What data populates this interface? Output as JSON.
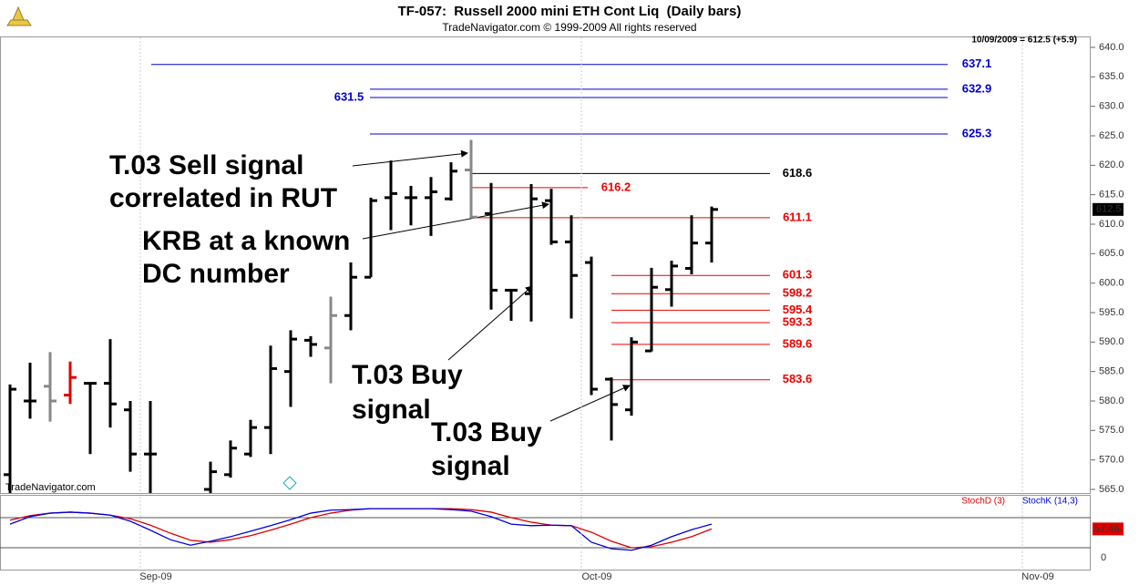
{
  "chart_data": [
    {
      "type": "ohlc",
      "title": "TF-057:  Russell 2000 mini ETH Cont Liq  (Daily bars)",
      "subtitle": "TradeNavigator.com © 1999-2009 All rights reserved",
      "info": "10/09/2009 = 612.5 (+5.9)",
      "watermark": "TradeNavigator.com",
      "categories": [
        null,
        null,
        null,
        null,
        null,
        null,
        null,
        "Sep-09",
        null,
        null,
        null,
        null,
        null,
        null,
        null,
        null,
        null,
        null,
        null,
        null,
        null,
        null,
        null,
        null,
        null,
        null,
        null,
        null,
        null,
        "Oct-09",
        null,
        null,
        null,
        null,
        null,
        null,
        null,
        null,
        null,
        null,
        null,
        null,
        null,
        null,
        null,
        null,
        null,
        null,
        null,
        null,
        null,
        "Nov-09",
        null,
        null
      ],
      "open": [
        567.5,
        580,
        582.5,
        581,
        583,
        583,
        578.5,
        571,
        null,
        null,
        565,
        567.5,
        571,
        575.5,
        585,
        590.3,
        589,
        594.5,
        601,
        614.5,
        614.5,
        614.5,
        614.3,
        619.2,
        611.8,
        598.8,
        598.2,
        614,
        607,
        603.5,
        583.7,
        578.5,
        588.5,
        598.9,
        602.5,
        606.8,
        null,
        null,
        null,
        null,
        null,
        null,
        null,
        null,
        null,
        null,
        null,
        null,
        null,
        null,
        null,
        null,
        null,
        null
      ],
      "high": [
        582.8,
        586.5,
        588.3,
        586.7,
        583,
        590.5,
        580,
        580,
        null,
        null,
        569.7,
        573.3,
        576.8,
        589.4,
        592,
        591,
        597.7,
        603.5,
        614.5,
        620.8,
        616.5,
        618,
        620.5,
        624.3,
        617,
        599,
        616.8,
        616,
        611.5,
        604.5,
        584,
        590.8,
        602.6,
        603.8,
        611.5,
        613,
        null,
        null,
        null,
        null,
        null,
        null,
        null,
        null,
        null,
        null,
        null,
        null,
        null,
        null,
        null,
        null,
        null,
        null
      ],
      "low": [
        563,
        577,
        576.5,
        579.5,
        571,
        575.5,
        568,
        562,
        null,
        null,
        563,
        567,
        570.5,
        571,
        579,
        587.5,
        583,
        592,
        601,
        609,
        609.8,
        608,
        614,
        611,
        595.5,
        593.6,
        593.5,
        606.5,
        594,
        581,
        573.3,
        577.5,
        588.4,
        596,
        601.5,
        603.5,
        null,
        null,
        null,
        null,
        null,
        null,
        null,
        null,
        null,
        null,
        null,
        null,
        null,
        null,
        null,
        null,
        null,
        null
      ],
      "close": [
        582,
        580,
        580,
        584,
        583,
        579.5,
        571,
        571,
        null,
        null,
        568,
        572,
        575.5,
        585.5,
        590.5,
        589.6,
        594.5,
        601,
        614,
        615.2,
        614.5,
        615.5,
        619,
        611.2,
        598.8,
        598.8,
        614.3,
        607,
        601.3,
        582,
        579.4,
        590,
        599.3,
        602.9,
        606.8,
        612.5,
        null,
        null,
        null,
        null,
        null,
        null,
        null,
        null,
        null,
        null,
        null,
        null,
        null,
        null,
        null,
        null,
        null,
        null
      ],
      "colors": [
        "#000",
        "#000",
        "#888",
        "#e00000",
        "#000",
        "#000",
        "#000",
        "#000",
        null,
        null,
        "#000",
        "#000",
        "#000",
        "#000",
        "#000",
        "#000",
        "#888",
        "#000",
        "#000",
        "#000",
        "#000",
        "#000",
        "#000",
        "#888",
        "#000",
        "#000",
        "#000",
        "#000",
        "#000",
        "#000",
        "#000",
        "#000",
        "#000",
        "#000",
        "#000",
        "#000",
        null,
        null,
        null,
        null,
        null,
        null,
        null,
        null,
        null,
        null,
        null,
        null,
        null,
        null,
        null,
        null,
        null,
        null
      ],
      "ylim": [
        565,
        640
      ],
      "yticks": [
        {
          "value": 565,
          "label": "565.0"
        },
        {
          "value": 570,
          "label": "570.0"
        },
        {
          "value": 575,
          "label": "575.0"
        },
        {
          "value": 580,
          "label": "580.0"
        },
        {
          "value": 585,
          "label": "585.0"
        },
        {
          "value": 590,
          "label": "590.0"
        },
        {
          "value": 595,
          "label": "595.0"
        },
        {
          "value": 600,
          "label": "600.0"
        },
        {
          "value": 605,
          "label": "605.0"
        },
        {
          "value": 610,
          "label": "610.0"
        },
        {
          "value": 615,
          "label": "615.0"
        },
        {
          "value": 620,
          "label": "620.0"
        },
        {
          "value": 625,
          "label": "625.0"
        },
        {
          "value": 630,
          "label": "630.0"
        },
        {
          "value": 635,
          "label": "635.0"
        },
        {
          "value": 640,
          "label": "640.0"
        }
      ],
      "levels": [
        {
          "value": 637.1,
          "color": "#0000cc"
        },
        {
          "value": 632.9,
          "color": "#0000cc"
        },
        {
          "value": 631.5,
          "color": "#0000cc"
        },
        {
          "value": 625.3,
          "color": "#0000cc"
        },
        {
          "value": 618.6,
          "color": "#000000"
        },
        {
          "value": 616.2,
          "color": "#ee0000"
        },
        {
          "value": 611.1,
          "color": "#ee0000"
        },
        {
          "value": 601.3,
          "color": "#ee0000"
        },
        {
          "value": 598.2,
          "color": "#ee0000"
        },
        {
          "value": 595.4,
          "color": "#ee0000"
        },
        {
          "value": 593.3,
          "color": "#ee0000"
        },
        {
          "value": 589.6,
          "color": "#ee0000"
        },
        {
          "value": 583.6,
          "color": "#ee0000"
        }
      ],
      "annotations": [
        {
          "lines": [
            "T.03 Sell signal",
            "correlated in RUT"
          ]
        },
        {
          "lines": [
            "KRB at a known",
            "DC number"
          ]
        },
        {
          "lines": [
            "T.03 Buy",
            "signal"
          ]
        },
        {
          "lines": [
            "T.03 Buy",
            "signal"
          ]
        }
      ]
    },
    {
      "type": "line",
      "series": [
        {
          "name": "StochD (3)",
          "color": "#dd0000",
          "values": [
            75,
            84,
            89,
            91,
            89,
            85,
            78,
            65,
            49,
            35,
            31,
            36,
            44,
            55,
            67,
            80,
            89,
            95,
            98,
            98,
            98,
            98,
            98,
            96,
            91,
            80,
            71,
            65,
            64,
            51,
            33,
            20,
            22,
            31,
            42,
            57.46,
            null,
            null,
            null,
            null,
            null,
            null,
            null,
            null,
            null,
            null,
            null,
            null,
            null,
            null,
            null,
            null,
            null,
            null
          ]
        },
        {
          "name": "StochK (14,3)",
          "color": "#0000dd",
          "values": [
            67,
            82,
            89,
            91,
            89,
            85,
            73,
            55,
            36,
            25,
            33,
            42,
            53,
            64,
            76,
            89,
            95,
            96,
            98,
            98,
            98,
            98,
            96,
            93,
            82,
            67,
            64,
            65,
            64,
            31,
            18,
            15,
            25,
            42,
            56,
            67,
            null,
            null,
            null,
            null,
            null,
            null,
            null,
            null,
            null,
            null,
            null,
            null,
            null,
            null,
            null,
            null,
            null,
            null
          ]
        }
      ],
      "ylim": [
        0,
        100
      ],
      "yticks": [
        0
      ],
      "hlines": [
        20,
        80
      ]
    }
  ]
}
